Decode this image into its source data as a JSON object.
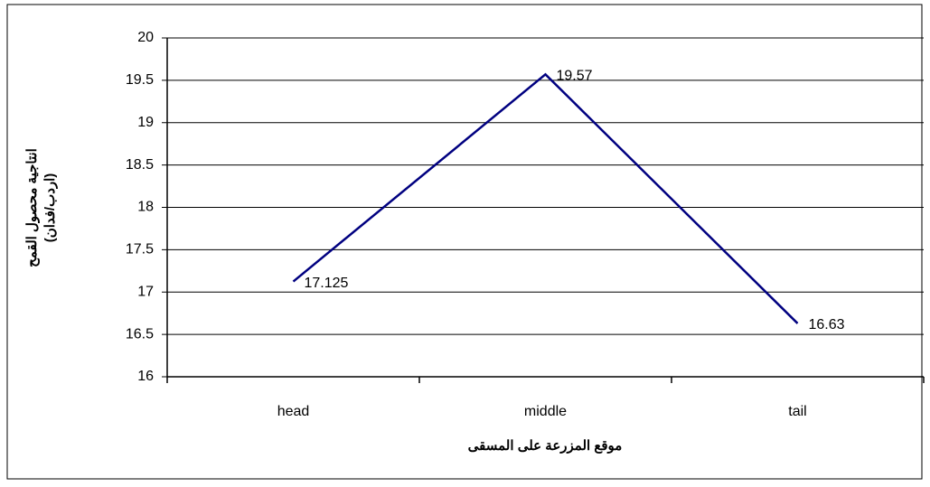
{
  "chart_data": {
    "type": "line",
    "categories": [
      "head",
      "middle",
      "tail"
    ],
    "series": [
      {
        "name": null,
        "color": "#000080",
        "values": [
          17.125,
          19.57,
          16.63
        ]
      }
    ],
    "ylim": [
      16,
      20
    ],
    "yticks": [
      16,
      16.5,
      17,
      17.5,
      18,
      18.5,
      19,
      19.5,
      20
    ],
    "grid": true,
    "xlabel": "موقع المزرعة على المسقى",
    "ylabel": [
      "انتاجية محصول القمح",
      "(اردب/فدان)"
    ]
  }
}
